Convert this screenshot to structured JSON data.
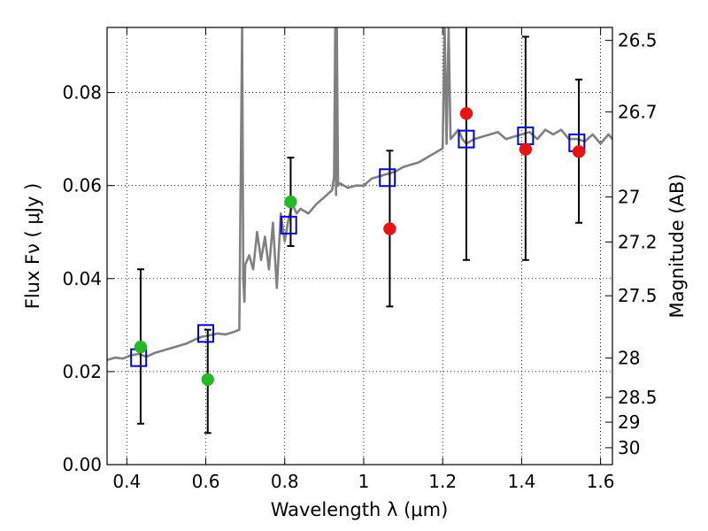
{
  "chart_data": {
    "type": "scatter",
    "title": "",
    "xlabel": "Wavelength  λ (μm)",
    "ylabel": "Flux  Fν  ( μJy )",
    "ylabel_right": "Magnitude (AB)",
    "xlim": [
      0.35,
      1.63
    ],
    "ylim": [
      0.0,
      0.094
    ],
    "grid": true,
    "x_ticks": [
      {
        "value": 0.4,
        "label": "0.4"
      },
      {
        "value": 0.6,
        "label": "0.6"
      },
      {
        "value": 0.8,
        "label": "0.8"
      },
      {
        "value": 1.0,
        "label": "1"
      },
      {
        "value": 1.2,
        "label": "1.2"
      },
      {
        "value": 1.4,
        "label": "1.4"
      },
      {
        "value": 1.6,
        "label": "1.6"
      }
    ],
    "y_ticks": [
      {
        "value": 0.0,
        "label": "0.00"
      },
      {
        "value": 0.02,
        "label": "0.02"
      },
      {
        "value": 0.04,
        "label": "0.04"
      },
      {
        "value": 0.06,
        "label": "0.06"
      },
      {
        "value": 0.08,
        "label": "0.08"
      }
    ],
    "right_ticks": [
      {
        "value": 26.5,
        "label": "26.5"
      },
      {
        "value": 26.7,
        "label": "26.7"
      },
      {
        "value": 27.0,
        "label": "27"
      },
      {
        "value": 27.2,
        "label": "27.2"
      },
      {
        "value": 27.5,
        "label": "27.5"
      },
      {
        "value": 28.0,
        "label": "28"
      },
      {
        "value": 28.5,
        "label": "28.5"
      },
      {
        "value": 29.0,
        "label": "29"
      },
      {
        "value": 30.0,
        "label": "30"
      }
    ],
    "model_spectrum": {
      "color": "#808080",
      "x": [
        0.35,
        0.37,
        0.39,
        0.41,
        0.43,
        0.45,
        0.47,
        0.49,
        0.51,
        0.53,
        0.55,
        0.57,
        0.59,
        0.61,
        0.63,
        0.65,
        0.67,
        0.685,
        0.692,
        0.695,
        0.698,
        0.7,
        0.71,
        0.72,
        0.73,
        0.74,
        0.75,
        0.76,
        0.77,
        0.78,
        0.79,
        0.8,
        0.81,
        0.82,
        0.83,
        0.84,
        0.86,
        0.88,
        0.9,
        0.92,
        0.925,
        0.928,
        0.93,
        0.932,
        0.935,
        0.94,
        0.96,
        0.98,
        1.0,
        1.02,
        1.04,
        1.06,
        1.08,
        1.1,
        1.12,
        1.14,
        1.16,
        1.18,
        1.2,
        1.205,
        1.21,
        1.215,
        1.22,
        1.23,
        1.24,
        1.25,
        1.26,
        1.28,
        1.3,
        1.32,
        1.34,
        1.36,
        1.38,
        1.4,
        1.42,
        1.44,
        1.46,
        1.48,
        1.5,
        1.52,
        1.54,
        1.56,
        1.58,
        1.6,
        1.62,
        1.63
      ],
      "y": [
        0.0225,
        0.023,
        0.0228,
        0.0235,
        0.0238,
        0.0232,
        0.024,
        0.0245,
        0.025,
        0.0255,
        0.026,
        0.0268,
        0.0275,
        0.0278,
        0.0282,
        0.028,
        0.0285,
        0.029,
        0.094,
        0.04,
        0.035,
        0.043,
        0.045,
        0.042,
        0.05,
        0.044,
        0.049,
        0.042,
        0.052,
        0.038,
        0.054,
        0.048,
        0.053,
        0.056,
        0.054,
        0.055,
        0.054,
        0.056,
        0.0575,
        0.059,
        0.062,
        0.094,
        0.058,
        0.094,
        0.06,
        0.0605,
        0.0595,
        0.06,
        0.06,
        0.0615,
        0.062,
        0.0625,
        0.063,
        0.064,
        0.0645,
        0.065,
        0.066,
        0.067,
        0.068,
        0.094,
        0.069,
        0.094,
        0.07,
        0.071,
        0.072,
        0.07,
        0.069,
        0.07,
        0.0705,
        0.071,
        0.0715,
        0.07,
        0.0705,
        0.071,
        0.0715,
        0.07,
        0.072,
        0.071,
        0.072,
        0.07,
        0.07,
        0.0695,
        0.071,
        0.069,
        0.071,
        0.07
      ]
    },
    "series": [
      {
        "marker": "square-open",
        "color": "#0000cc",
        "x": [
          0.43,
          0.6,
          0.81,
          1.06,
          1.26,
          1.41,
          1.54
        ],
        "y": [
          0.023,
          0.0282,
          0.0515,
          0.0617,
          0.07,
          0.0707,
          0.0692
        ]
      },
      {
        "marker": "circle",
        "color": "#22bb22",
        "x": [
          0.435,
          0.605,
          0.815
        ],
        "y": [
          0.0253,
          0.0183,
          0.0565
        ]
      },
      {
        "marker": "circle",
        "color": "#ee1111",
        "x": [
          1.066,
          1.26,
          1.41,
          1.545
        ],
        "y": [
          0.0507,
          0.0755,
          0.0678,
          0.0673
        ]
      }
    ],
    "error_bars": {
      "color": "#000000",
      "x": [
        0.435,
        0.605,
        0.815,
        1.066,
        1.26,
        1.41,
        1.545
      ],
      "low": [
        0.0088,
        0.0068,
        0.047,
        0.034,
        0.044,
        0.044,
        0.052
      ],
      "high": [
        0.042,
        0.029,
        0.066,
        0.0675,
        0.096,
        0.092,
        0.0828
      ]
    }
  }
}
